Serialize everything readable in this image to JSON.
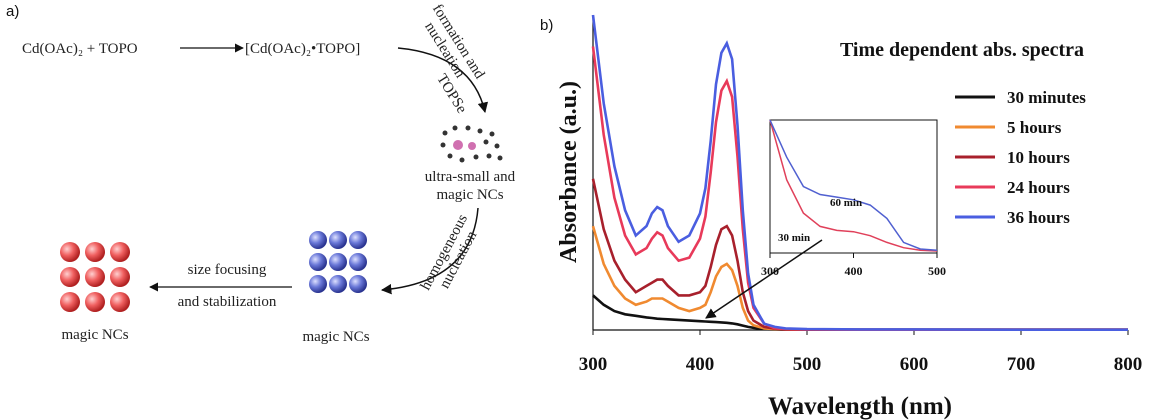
{
  "scheme": {
    "label": "a)",
    "reactant": "Cd(OAc)₂ + TOPO",
    "complex": "[Cd(OAc)₂•TOPO]",
    "step1": [
      "formation and",
      "nucleation"
    ],
    "reagent": "TOPSe",
    "intermediate": [
      "ultra-small and",
      "magic NCs"
    ],
    "step2": [
      "homogeneous",
      "nucleation"
    ],
    "product1": "magic NCs",
    "step3": [
      "size focusing",
      "and stabilization"
    ],
    "product2": "magic NCs"
  },
  "panel_b_label": "b)",
  "chart_data": [
    {
      "type": "line",
      "title": "Time dependent abs. spectra",
      "x_label": "Wavelength (nm)",
      "y_label": "Absorbance (a.u.)",
      "x": [
        300,
        310,
        320,
        330,
        340,
        350,
        355,
        360,
        365,
        370,
        380,
        390,
        400,
        405,
        410,
        415,
        420,
        425,
        430,
        435,
        440,
        445,
        450,
        460,
        470,
        480,
        500,
        550,
        600,
        700,
        800
      ],
      "xlim": [
        300,
        800
      ],
      "xticks": [
        300,
        400,
        500,
        600,
        700,
        800
      ],
      "ylim": [
        0,
        1
      ],
      "legend": "upper right",
      "series": [
        {
          "name": "30 minutes",
          "color": "#111111",
          "values": [
            0.11,
            0.08,
            0.06,
            0.05,
            0.045,
            0.04,
            0.038,
            0.036,
            0.035,
            0.034,
            0.032,
            0.03,
            0.028,
            0.027,
            0.026,
            0.025,
            0.024,
            0.023,
            0.021,
            0.018,
            0.014,
            0.01,
            0.007,
            0.003,
            0.002,
            0.001,
            0.001,
            0.001,
            0.001,
            0.001,
            0.001
          ]
        },
        {
          "name": "5 hours",
          "color": "#f08a30",
          "values": [
            0.33,
            0.21,
            0.14,
            0.1,
            0.08,
            0.09,
            0.1,
            0.1,
            0.1,
            0.09,
            0.07,
            0.06,
            0.07,
            0.08,
            0.12,
            0.17,
            0.2,
            0.21,
            0.19,
            0.14,
            0.07,
            0.03,
            0.015,
            0.005,
            0.003,
            0.002,
            0.001,
            0.001,
            0.001,
            0.001,
            0.001
          ]
        },
        {
          "name": "10 hours",
          "color": "#a8202c",
          "values": [
            0.48,
            0.32,
            0.22,
            0.16,
            0.12,
            0.14,
            0.15,
            0.16,
            0.16,
            0.14,
            0.11,
            0.11,
            0.12,
            0.14,
            0.2,
            0.27,
            0.32,
            0.33,
            0.3,
            0.22,
            0.12,
            0.06,
            0.03,
            0.01,
            0.004,
            0.002,
            0.001,
            0.001,
            0.001,
            0.001,
            0.001
          ]
        },
        {
          "name": "24 hours",
          "color": "#e83a5a",
          "values": [
            0.9,
            0.62,
            0.42,
            0.3,
            0.24,
            0.26,
            0.29,
            0.31,
            0.3,
            0.26,
            0.22,
            0.23,
            0.29,
            0.36,
            0.5,
            0.66,
            0.76,
            0.79,
            0.74,
            0.55,
            0.32,
            0.15,
            0.07,
            0.02,
            0.005,
            0.003,
            0.002,
            0.001,
            0.001,
            0.001,
            0.001
          ]
        },
        {
          "name": "36 hours",
          "color": "#4a5ee0",
          "values": [
            1.0,
            0.72,
            0.52,
            0.38,
            0.3,
            0.33,
            0.37,
            0.39,
            0.38,
            0.33,
            0.28,
            0.3,
            0.37,
            0.45,
            0.6,
            0.78,
            0.88,
            0.91,
            0.86,
            0.65,
            0.38,
            0.18,
            0.08,
            0.02,
            0.01,
            0.005,
            0.003,
            0.002,
            0.002,
            0.001,
            0.001
          ]
        }
      ]
    },
    {
      "type": "line",
      "x": [
        300,
        320,
        340,
        360,
        380,
        400,
        420,
        440,
        460,
        480,
        500
      ],
      "xlim": [
        300,
        500
      ],
      "xticks": [
        300,
        400,
        500
      ],
      "ylim": [
        0,
        1
      ],
      "series": [
        {
          "name": "30 min",
          "color": "#e0405a",
          "values": [
            1.0,
            0.55,
            0.3,
            0.2,
            0.17,
            0.16,
            0.13,
            0.08,
            0.04,
            0.02,
            0.015
          ]
        },
        {
          "name": "60 min",
          "color": "#5060d0",
          "values": [
            1.0,
            0.72,
            0.5,
            0.44,
            0.42,
            0.4,
            0.36,
            0.26,
            0.08,
            0.03,
            0.02
          ]
        }
      ]
    }
  ]
}
